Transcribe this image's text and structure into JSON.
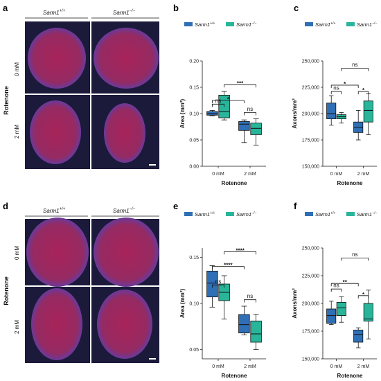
{
  "colors": {
    "wt": "#2f6fb5",
    "ko": "#28b59a",
    "micrograph_bg": "#1b1a3a",
    "tissue": "#b0235a"
  },
  "image_panels": [
    {
      "letter": "a",
      "col1": "Sarm1",
      "col1_sup": "+/+",
      "col2": "Sarm1",
      "col2_sup": "−/−",
      "row1": "0 mM",
      "row2": "2 mM",
      "group": "Rotenone"
    },
    {
      "letter": "d",
      "col1": "Sarm1",
      "col1_sup": "+/+",
      "col2": "Sarm1",
      "col2_sup": "−/−",
      "row1": "0 mM",
      "row2": "2 mM",
      "group": "Rotenone"
    }
  ],
  "legend": {
    "wt": "Sarm1",
    "wt_sup": "+/+",
    "ko": "Sarm1",
    "ko_sup": "−/−"
  },
  "chart_data": [
    {
      "letter": "b",
      "type": "boxplot",
      "categories": [
        "0 mM",
        "2 mM"
      ],
      "xlabel": "Rotenone",
      "ylabel": "Area (mm²)",
      "ylim": [
        0,
        0.2
      ],
      "yticks": [
        "0.00",
        "0.05",
        "0.10",
        "0.15",
        "0.20"
      ],
      "tickvals": [
        0,
        0.05,
        0.1,
        0.15,
        0.2
      ],
      "series": [
        {
          "name": "Sarm1+/+",
          "boxes": [
            {
              "min": 0.096,
              "q1": 0.097,
              "median": 0.1,
              "q3": 0.104,
              "max": 0.106
            },
            {
              "min": 0.045,
              "q1": 0.068,
              "median": 0.08,
              "q3": 0.085,
              "max": 0.088
            }
          ]
        },
        {
          "name": "Sarm1−/−",
          "boxes": [
            {
              "min": 0.088,
              "q1": 0.092,
              "median": 0.104,
              "q3": 0.135,
              "max": 0.142
            },
            {
              "min": 0.04,
              "q1": 0.06,
              "median": 0.072,
              "q3": 0.082,
              "max": 0.09
            }
          ]
        }
      ],
      "brackets": [
        {
          "g1": [
            0,
            0
          ],
          "g2": [
            1,
            0
          ],
          "label": "*",
          "y": 0.125
        },
        {
          "g1": [
            0,
            1
          ],
          "g2": [
            1,
            1
          ],
          "label": "***",
          "y": 0.155
        },
        {
          "g1": [
            0,
            0
          ],
          "g2": [
            0,
            1
          ],
          "label": "ns",
          "y": 0.118
        },
        {
          "g1": [
            1,
            0
          ],
          "g2": [
            1,
            1
          ],
          "label": "ns",
          "y": 0.102
        }
      ]
    },
    {
      "letter": "c",
      "type": "boxplot",
      "categories": [
        "0 mM",
        "2 mM"
      ],
      "xlabel": "Rotenone",
      "ylabel": "Axons/mm²",
      "ylim": [
        150000,
        250000
      ],
      "yticks": [
        "150,000",
        "175,000",
        "200,000",
        "225,000",
        "250,000"
      ],
      "tickvals": [
        150000,
        175000,
        200000,
        225000,
        250000
      ],
      "series": [
        {
          "name": "Sarm1+/+",
          "boxes": [
            {
              "min": 189000,
              "q1": 195000,
              "median": 200000,
              "q3": 210000,
              "max": 217000
            },
            {
              "min": 175000,
              "q1": 182000,
              "median": 187000,
              "q3": 192000,
              "max": 203000
            }
          ]
        },
        {
          "name": "Sarm1−/−",
          "boxes": [
            {
              "min": 191000,
              "q1": 195000,
              "median": 197000,
              "q3": 199000,
              "max": 201000
            },
            {
              "min": 180000,
              "q1": 192000,
              "median": 203000,
              "q3": 212000,
              "max": 219000
            }
          ]
        }
      ],
      "brackets": [
        {
          "g1": [
            0,
            0
          ],
          "g2": [
            1,
            0
          ],
          "label": "*",
          "y": 227000
        },
        {
          "g1": [
            0,
            1
          ],
          "g2": [
            1,
            1
          ],
          "label": "ns",
          "y": 243000
        },
        {
          "g1": [
            0,
            0
          ],
          "g2": [
            0,
            1
          ],
          "label": "ns",
          "y": 221000
        },
        {
          "g1": [
            1,
            0
          ],
          "g2": [
            1,
            1
          ],
          "label": "*",
          "y": 221000
        }
      ]
    },
    {
      "letter": "e",
      "type": "boxplot",
      "categories": [
        "0 mM",
        "2 mM"
      ],
      "xlabel": "Rotenone",
      "ylabel": "Area (mm²)",
      "ylim": [
        0.04,
        0.16
      ],
      "yticks": [
        "0.05",
        "0.10",
        "0.15"
      ],
      "tickvals": [
        0.05,
        0.1,
        0.15
      ],
      "series": [
        {
          "name": "Sarm1+/+",
          "boxes": [
            {
              "min": 0.096,
              "q1": 0.107,
              "median": 0.122,
              "q3": 0.135,
              "max": 0.141
            },
            {
              "min": 0.066,
              "q1": 0.068,
              "median": 0.077,
              "q3": 0.088,
              "max": 0.097
            }
          ]
        },
        {
          "name": "Sarm1−/−",
          "boxes": [
            {
              "min": 0.083,
              "q1": 0.103,
              "median": 0.112,
              "q3": 0.121,
              "max": 0.13
            },
            {
              "min": 0.05,
              "q1": 0.058,
              "median": 0.067,
              "q3": 0.081,
              "max": 0.088
            }
          ]
        }
      ],
      "brackets": [
        {
          "g1": [
            0,
            0
          ],
          "g2": [
            1,
            0
          ],
          "label": "****",
          "y": 0.14
        },
        {
          "g1": [
            0,
            1
          ],
          "g2": [
            1,
            1
          ],
          "label": "****",
          "y": 0.156
        },
        {
          "g1": [
            0,
            0
          ],
          "g2": [
            0,
            1
          ],
          "label": "ns",
          "y": 0.12
        },
        {
          "g1": [
            1,
            0
          ],
          "g2": [
            1,
            1
          ],
          "label": "ns",
          "y": 0.104
        }
      ]
    },
    {
      "letter": "f",
      "type": "boxplot",
      "categories": [
        "0 mM",
        "2 mM"
      ],
      "xlabel": "Rotenone",
      "ylabel": "Axons/mm²",
      "ylim": [
        150000,
        250000
      ],
      "yticks": [
        "150,000",
        "175,000",
        "200,000",
        "225,000",
        "250,000"
      ],
      "tickvals": [
        150000,
        175000,
        200000,
        225000,
        250000
      ],
      "series": [
        {
          "name": "Sarm1+/+",
          "boxes": [
            {
              "min": 181000,
              "q1": 182000,
              "median": 189000,
              "q3": 195000,
              "max": 202000
            },
            {
              "min": 160000,
              "q1": 165000,
              "median": 172000,
              "q3": 176000,
              "max": 178000
            }
          ]
        },
        {
          "name": "Sarm1−/−",
          "boxes": [
            {
              "min": 183000,
              "q1": 189000,
              "median": 196000,
              "q3": 201000,
              "max": 206000
            },
            {
              "min": 168000,
              "q1": 184000,
              "median": 186000,
              "q3": 200000,
              "max": 212000
            }
          ]
        }
      ],
      "brackets": [
        {
          "g1": [
            0,
            0
          ],
          "g2": [
            1,
            0
          ],
          "label": "**",
          "y": 218000
        },
        {
          "g1": [
            0,
            1
          ],
          "g2": [
            1,
            1
          ],
          "label": "ns",
          "y": 241000
        },
        {
          "g1": [
            0,
            0
          ],
          "g2": [
            0,
            1
          ],
          "label": "ns",
          "y": 213000
        },
        {
          "g1": [
            1,
            0
          ],
          "g2": [
            1,
            1
          ],
          "label": "*",
          "y": 207000
        }
      ]
    }
  ]
}
